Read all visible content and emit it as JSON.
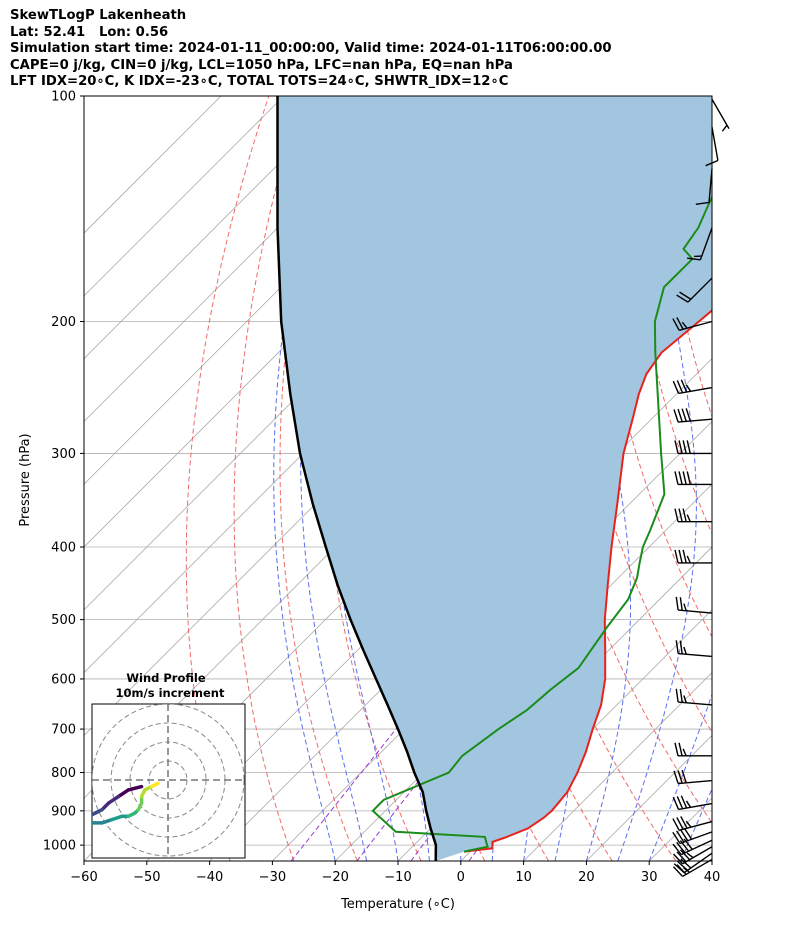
{
  "header": {
    "line1": "SkewTLogP Lakenheath",
    "line2": "Lat: 52.41   Lon: 0.56",
    "line3": "Simulation start time: 2024-01-11_00:00:00, Valid time: 2024-01-11T06:00:00.00",
    "line4": "CAPE=0 j/kg, CIN=0 j/kg, LCL=1050 hPa, LFC=nan hPa, EQ=nan hPa",
    "line5": "LFT IDX=20∘C, K IDX=-23∘C, TOTAL TOTS=24∘C, SHWTR_IDX=12∘C"
  },
  "chart_data": {
    "type": "skewt-logp",
    "xlabel": "Temperature (∘C)",
    "ylabel": "Pressure (hPa)",
    "xlim": [
      -60,
      40
    ],
    "ylim": [
      1050,
      100
    ],
    "x_ticks": [
      "−60",
      "−50",
      "−40",
      "−30",
      "−20",
      "−10",
      "0",
      "10",
      "20",
      "30",
      "40"
    ],
    "y_ticks": [
      "100",
      "200",
      "300",
      "400",
      "500",
      "600",
      "700",
      "800",
      "900",
      "1000"
    ],
    "grid": true,
    "colors": {
      "temperature": "#e8211a",
      "dewpoint": "#1a8c1a",
      "parcel": "#000000",
      "cape_fill": "#a3c6e0",
      "dry_adiabats": "#f06a6a",
      "moist_adiabats": "#5a6ef0",
      "mixing_ratio": "#9a3ad0",
      "isotherms": "#aaaaaa"
    },
    "temperature_profile": {
      "pressure": [
        1020,
        1010,
        990,
        975,
        950,
        920,
        900,
        850,
        800,
        750,
        700,
        650,
        600,
        550,
        500,
        450,
        400,
        350,
        300,
        270,
        250,
        235,
        220,
        200,
        180,
        165,
        150,
        140,
        130,
        120,
        110,
        100
      ],
      "temperature": [
        -1,
        3,
        2,
        3.5,
        5.5,
        6.3,
        6.5,
        6,
        4.5,
        2.5,
        0,
        -2.5,
        -6,
        -10.5,
        -15.5,
        -20.5,
        -26,
        -32,
        -39,
        -43,
        -46,
        -48,
        -49,
        -48,
        -47,
        -46,
        -44,
        -43,
        -43.5,
        -43,
        -43,
        -43
      ]
    },
    "dewpoint_profile": {
      "pressure": [
        1020,
        1005,
        990,
        975,
        960,
        900,
        870,
        800,
        760,
        700,
        660,
        620,
        580,
        510,
        470,
        440,
        420,
        400,
        380,
        340,
        300,
        250,
        220,
        200,
        180,
        165,
        160,
        150,
        140,
        130,
        120,
        110,
        100
      ],
      "temperature": [
        -1,
        2,
        1,
        0,
        -15,
        -22,
        -22,
        -16,
        -16.5,
        -15,
        -13.5,
        -13,
        -12,
        -14,
        -15,
        -17,
        -19,
        -21,
        -22.5,
        -26,
        -33,
        -43,
        -50,
        -55,
        -59,
        -59,
        -62,
        -63,
        -65,
        -67,
        -68,
        -70,
        -71
      ]
    },
    "parcel_profile": {
      "pressure": [
        1050,
        1000,
        950,
        900,
        850,
        800,
        750,
        700,
        650,
        600,
        550,
        500,
        450,
        400,
        350,
        300,
        250,
        200,
        150,
        100
      ],
      "temperature": [
        -4,
        -6.5,
        -10,
        -13.5,
        -17,
        -21.5,
        -26,
        -31,
        -36.5,
        -42.5,
        -49,
        -56,
        -63.5,
        -71.5,
        -80.5,
        -90.5,
        -101.5,
        -114.5,
        -130,
        -151
      ]
    },
    "wind_barbs": [
      {
        "pressure": 1045,
        "speed": 25,
        "direction": 240
      },
      {
        "pressure": 1025,
        "speed": 30,
        "direction": 235
      },
      {
        "pressure": 1005,
        "speed": 35,
        "direction": 240
      },
      {
        "pressure": 985,
        "speed": 40,
        "direction": 245
      },
      {
        "pressure": 960,
        "speed": 40,
        "direction": 250
      },
      {
        "pressure": 930,
        "speed": 35,
        "direction": 255
      },
      {
        "pressure": 880,
        "speed": 35,
        "direction": 260
      },
      {
        "pressure": 820,
        "speed": 30,
        "direction": 265
      },
      {
        "pressure": 760,
        "speed": 25,
        "direction": 270
      },
      {
        "pressure": 650,
        "speed": 25,
        "direction": 275
      },
      {
        "pressure": 560,
        "speed": 25,
        "direction": 275
      },
      {
        "pressure": 490,
        "speed": 25,
        "direction": 275
      },
      {
        "pressure": 420,
        "speed": 35,
        "direction": 270
      },
      {
        "pressure": 370,
        "speed": 35,
        "direction": 270
      },
      {
        "pressure": 330,
        "speed": 40,
        "direction": 270
      },
      {
        "pressure": 300,
        "speed": 40,
        "direction": 270
      },
      {
        "pressure": 270,
        "speed": 40,
        "direction": 265
      },
      {
        "pressure": 245,
        "speed": 35,
        "direction": 260
      },
      {
        "pressure": 200,
        "speed": 25,
        "direction": 255
      },
      {
        "pressure": 175,
        "speed": 20,
        "direction": 225
      },
      {
        "pressure": 150,
        "speed": 15,
        "direction": 200
      },
      {
        "pressure": 125,
        "speed": 10,
        "direction": 185
      },
      {
        "pressure": 110,
        "speed": 10,
        "direction": 170
      },
      {
        "pressure": 101,
        "speed": 5,
        "direction": 150
      }
    ],
    "hodograph": {
      "title_line1": "Wind Profile",
      "title_line2": "10m/s increment",
      "u": [
        -8,
        -12,
        -15,
        -18,
        -20,
        -22,
        -24,
        -25,
        -23,
        -20,
        -17,
        -14,
        -12,
        -10,
        -9,
        -8,
        -8,
        -7,
        -5,
        -3
      ],
      "v": [
        -2,
        -3,
        -5,
        -7,
        -9,
        -10,
        -11,
        -12,
        -13,
        -13,
        -12,
        -11,
        -11,
        -10,
        -9,
        -7,
        -5,
        -3,
        -2,
        -1
      ]
    }
  }
}
